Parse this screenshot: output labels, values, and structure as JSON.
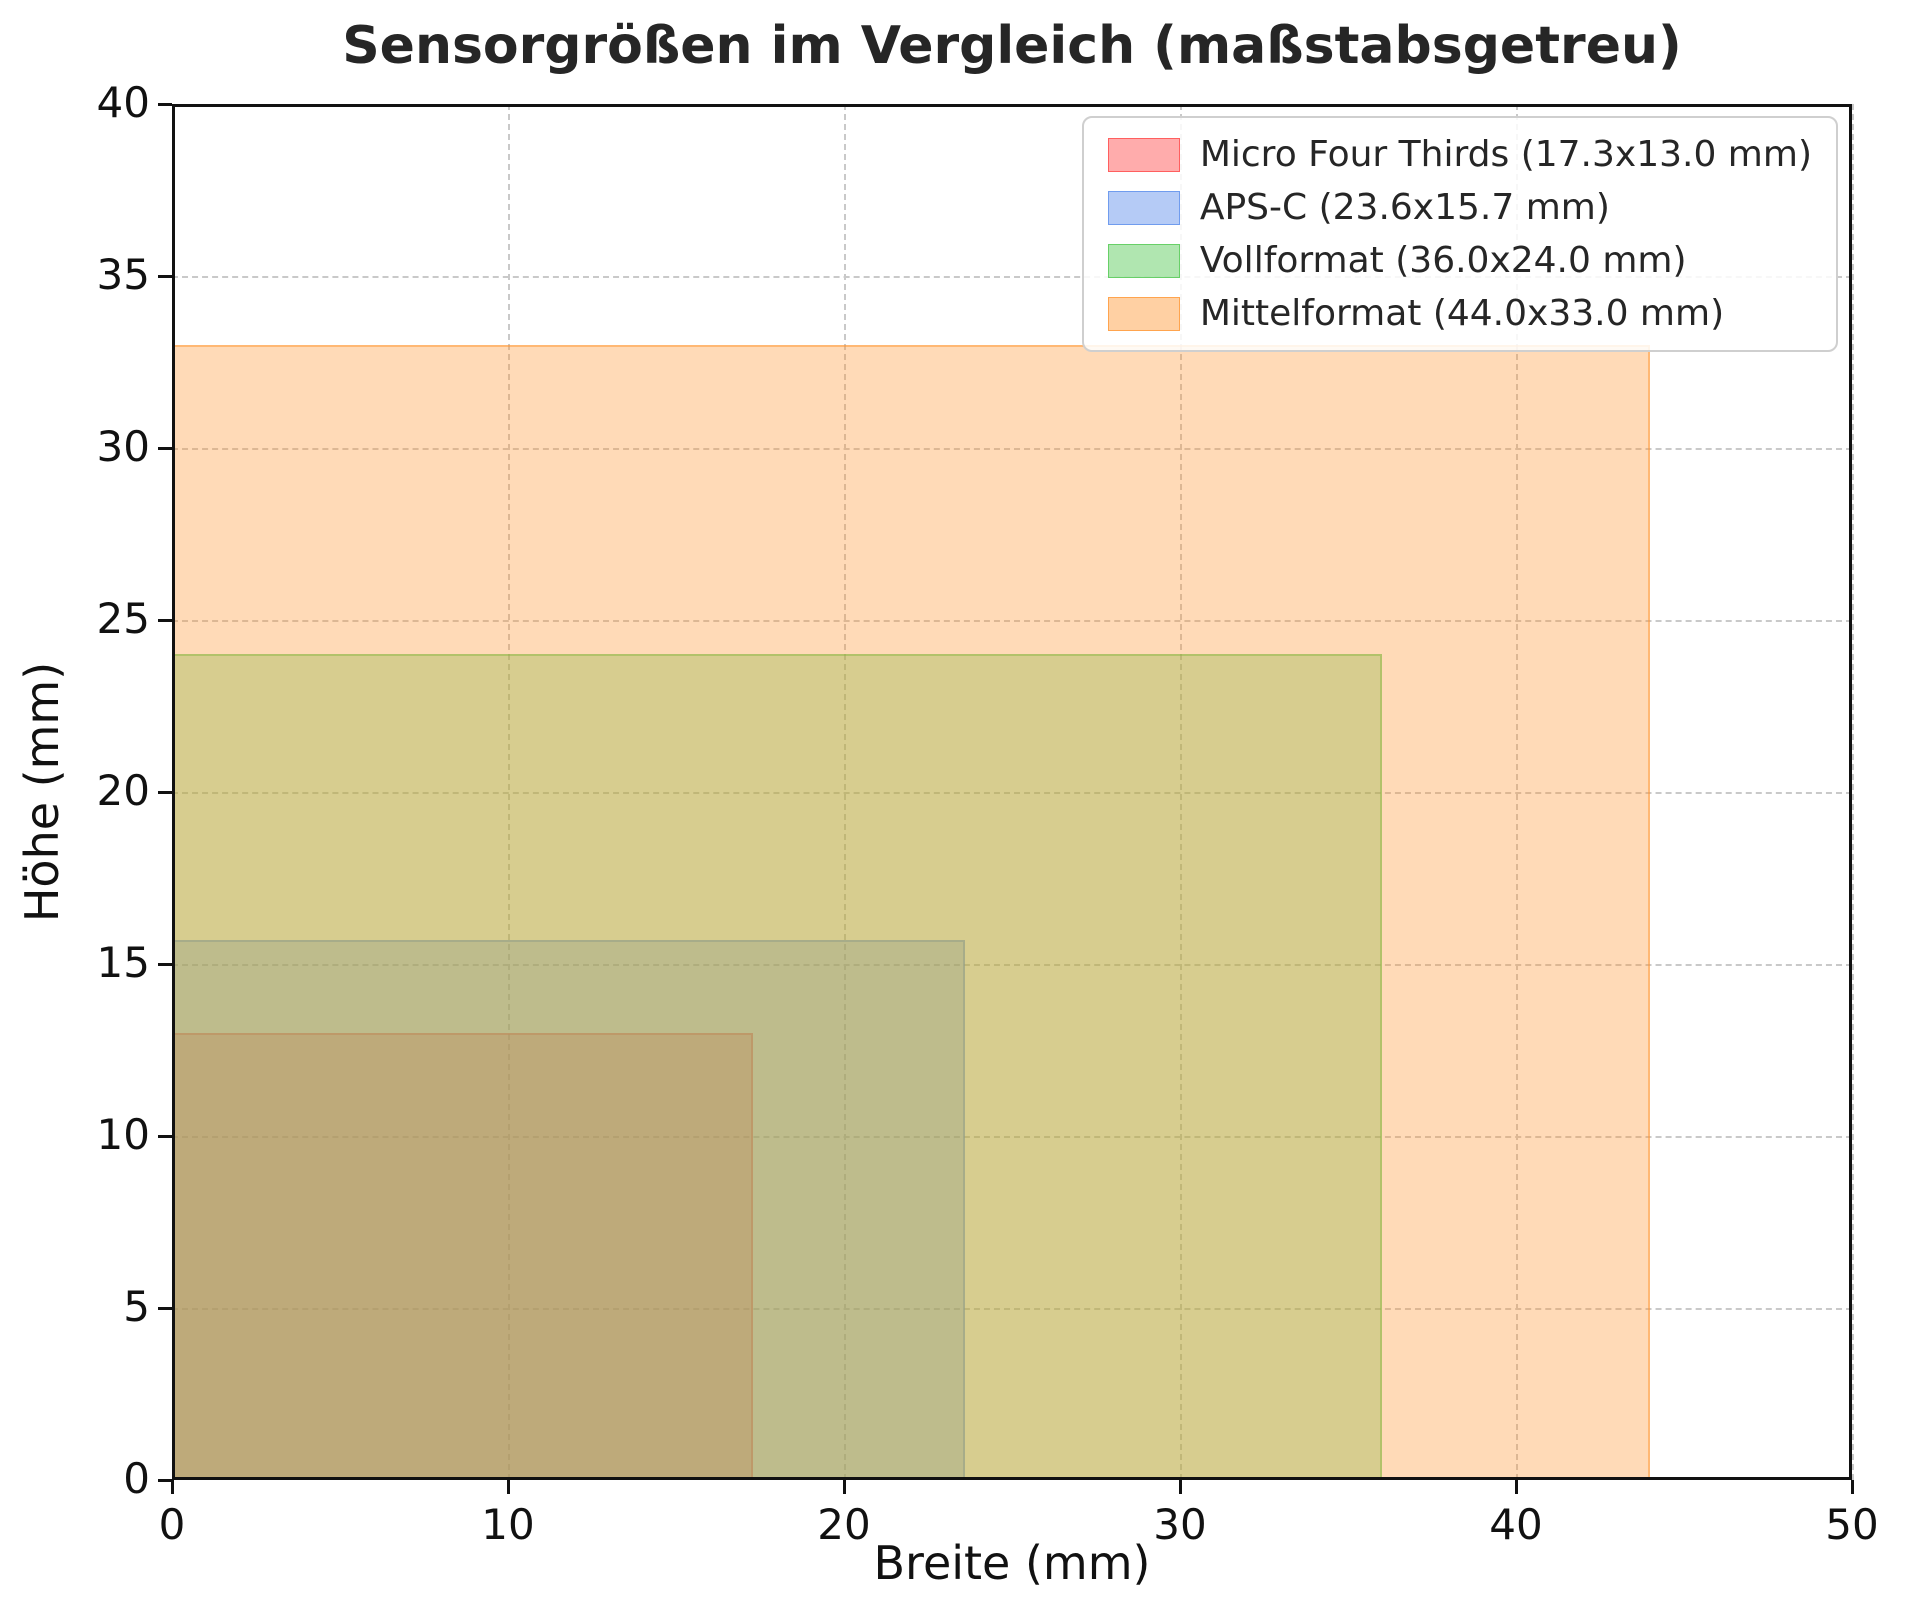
{
  "chart_data": {
    "type": "area",
    "title": "Sensorgrößen im Vergleich (maßstabsgetreu)",
    "xlabel": "Breite (mm)",
    "ylabel": "Höhe (mm)",
    "xlim": [
      0,
      50
    ],
    "ylim": [
      0,
      40
    ],
    "xticks": [
      0,
      10,
      20,
      30,
      40,
      50
    ],
    "yticks": [
      0,
      5,
      10,
      15,
      20,
      25,
      30,
      35,
      40
    ],
    "grid": true,
    "grid_style": "dashed",
    "legend_position": "top-right",
    "series": [
      {
        "key": "micro-four-thirds",
        "name": "Micro Four Thirds (17.3x13.0 mm)",
        "width_mm": 17.3,
        "height_mm": 13.0,
        "color": "#ff4646",
        "alpha": 0.35
      },
      {
        "key": "aps-c",
        "name": "APS-C (23.6x15.7 mm)",
        "width_mm": 23.6,
        "height_mm": 15.7,
        "color": "#5a8ceb",
        "alpha": 0.35
      },
      {
        "key": "vollformat",
        "name": "Vollformat (36.0x24.0 mm)",
        "width_mm": 36.0,
        "height_mm": 24.0,
        "color": "#50c850",
        "alpha": 0.35
      },
      {
        "key": "mittelformat",
        "name": "Mittelformat (44.0x33.0 mm)",
        "width_mm": 44.0,
        "height_mm": 33.0,
        "color": "#ff9632",
        "alpha": 0.35
      }
    ]
  }
}
